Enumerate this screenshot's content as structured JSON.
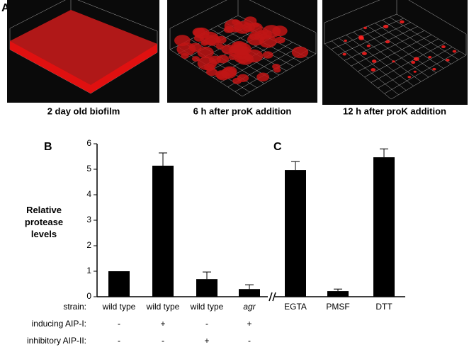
{
  "panel_a": {
    "letter": "A",
    "captions": [
      "2 day old biofilm",
      "6 h after proK addition",
      "12 h after proK addition"
    ]
  },
  "chart_data": [
    {
      "type": "bar",
      "letter": "B",
      "ylabel": "Relative protease levels",
      "categories": [
        "wild type",
        "wild type",
        "wild type",
        "agr"
      ],
      "values": [
        1.0,
        5.14,
        0.69,
        0.3
      ],
      "errors": [
        null,
        0.5,
        0.28,
        0.17
      ],
      "color": "#000000",
      "ylim": [
        0,
        6
      ],
      "yticks": [
        0,
        1,
        2,
        3,
        4,
        5,
        6
      ]
    },
    {
      "type": "bar",
      "letter": "C",
      "categories": [
        "EGTA",
        "PMSF",
        "DTT"
      ],
      "values": [
        4.97,
        0.22,
        5.47
      ],
      "errors": [
        0.33,
        0.08,
        0.33
      ],
      "color": "#000000",
      "ylim": [
        0,
        6
      ]
    }
  ],
  "strain_label": "strain:",
  "condition_rows": [
    {
      "label": "inducing AIP-I:",
      "values": [
        "-",
        "+",
        "-",
        "+"
      ]
    },
    {
      "label": "inhibitory AIP-II:",
      "values": [
        "-",
        "-",
        "+",
        "-"
      ]
    }
  ]
}
